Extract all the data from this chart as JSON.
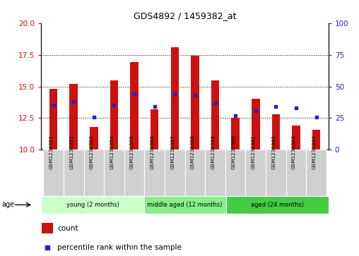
{
  "title": "GDS4892 / 1459382_at",
  "samples": [
    "GSM1230351",
    "GSM1230352",
    "GSM1230353",
    "GSM1230354",
    "GSM1230355",
    "GSM1230356",
    "GSM1230357",
    "GSM1230358",
    "GSM1230359",
    "GSM1230360",
    "GSM1230361",
    "GSM1230362",
    "GSM1230363",
    "GSM1230364"
  ],
  "counts": [
    14.8,
    15.2,
    11.8,
    15.5,
    16.9,
    13.2,
    18.1,
    17.4,
    15.5,
    12.5,
    14.0,
    12.8,
    11.9,
    11.6
  ],
  "percentiles": [
    35,
    38,
    26,
    35,
    44,
    34,
    44,
    43,
    37,
    27,
    31,
    34,
    33,
    26
  ],
  "ylim_left": [
    10,
    20
  ],
  "ylim_right": [
    0,
    100
  ],
  "yticks_left": [
    10,
    12.5,
    15,
    17.5,
    20
  ],
  "yticks_right": [
    0,
    25,
    50,
    75,
    100
  ],
  "bar_color": "#cc1111",
  "dot_color": "#2222cc",
  "groups": [
    {
      "label": "young (2 months)",
      "start": 0,
      "end": 5,
      "color": "#ccffcc"
    },
    {
      "label": "middle aged (12 months)",
      "start": 5,
      "end": 9,
      "color": "#88ee88"
    },
    {
      "label": "aged (24 months)",
      "start": 9,
      "end": 14,
      "color": "#44cc44"
    }
  ],
  "group_row_color": "#d0d0d0",
  "bg_color": "#ffffff",
  "ylabel_left_color": "#cc1111",
  "ylabel_right_color": "#2222cc",
  "bar_width": 0.4
}
